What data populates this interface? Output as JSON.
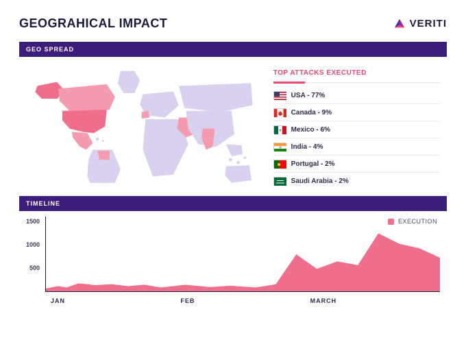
{
  "header": {
    "title": "GEOGRAHICAL IMPACT",
    "brand": "VERITI",
    "brand_colors": {
      "purple": "#4b2ea0",
      "magenta": "#b5179e",
      "pink": "#ef476f"
    }
  },
  "geo": {
    "section_label": "GEO SPREAD",
    "map": {
      "base_fill": "#d9d1ef",
      "highlight_fill": "#f59bb0",
      "highlight_strong": "#ef6e8c",
      "highlighted_countries": [
        "USA",
        "Canada",
        "Mexico",
        "India",
        "Portugal",
        "Saudi Arabia"
      ]
    },
    "top_attacks_label": "TOP ATTACKS EXECUTED",
    "top_attacks_label_color": "#ef476f",
    "countries": [
      {
        "name": "USA",
        "pct": 77,
        "flag": "us"
      },
      {
        "name": "Canada",
        "pct": 9,
        "flag": "ca"
      },
      {
        "name": "Mexico",
        "pct": 6,
        "flag": "mx"
      },
      {
        "name": "India",
        "pct": 4,
        "flag": "in"
      },
      {
        "name": "Portugal",
        "pct": 2,
        "flag": "pt"
      },
      {
        "name": "Saudi Arabia",
        "pct": 2,
        "flag": "sa"
      }
    ]
  },
  "timeline": {
    "section_label": "TIMELINE",
    "legend_label": "EXECUTION",
    "legend_color": "#ef6e8c",
    "y_ticks": [
      1500,
      1000,
      500
    ],
    "ylim": [
      0,
      1600
    ],
    "x_labels": [
      "JAN",
      "FEB",
      "MARCH"
    ],
    "series": {
      "fill": "#ef6e8c",
      "points": [
        {
          "x": 0,
          "y": 60
        },
        {
          "x": 30,
          "y": 110
        },
        {
          "x": 50,
          "y": 80
        },
        {
          "x": 80,
          "y": 170
        },
        {
          "x": 120,
          "y": 130
        },
        {
          "x": 160,
          "y": 150
        },
        {
          "x": 200,
          "y": 110
        },
        {
          "x": 240,
          "y": 140
        },
        {
          "x": 280,
          "y": 80
        },
        {
          "x": 340,
          "y": 140
        },
        {
          "x": 400,
          "y": 90
        },
        {
          "x": 450,
          "y": 120
        },
        {
          "x": 510,
          "y": 80
        },
        {
          "x": 560,
          "y": 150
        },
        {
          "x": 610,
          "y": 790
        },
        {
          "x": 660,
          "y": 480
        },
        {
          "x": 710,
          "y": 640
        },
        {
          "x": 760,
          "y": 560
        },
        {
          "x": 810,
          "y": 1240
        },
        {
          "x": 860,
          "y": 1020
        },
        {
          "x": 910,
          "y": 920
        },
        {
          "x": 960,
          "y": 720
        }
      ],
      "x_domain": [
        0,
        960
      ]
    },
    "axis_color": "#1a1a3a",
    "background": "#ffffff"
  }
}
